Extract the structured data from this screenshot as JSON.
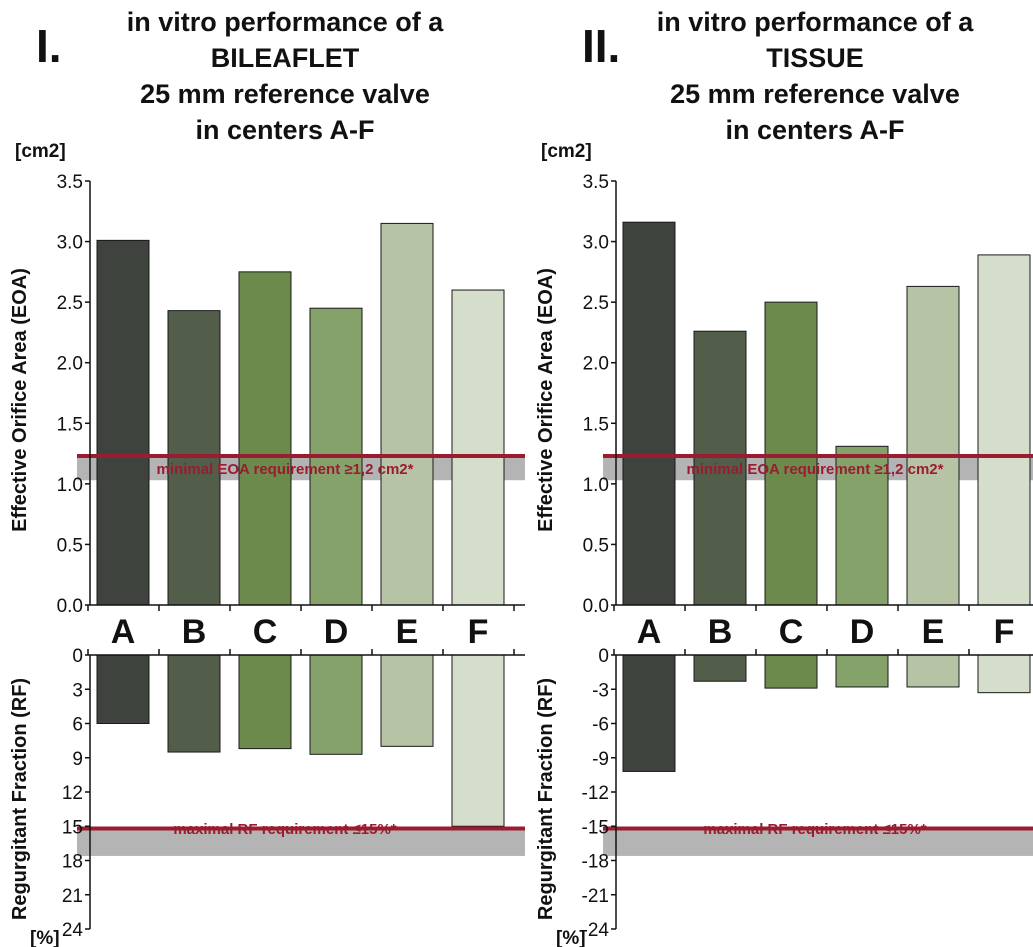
{
  "chart_data": [
    {
      "panel": "I.",
      "title_lines": [
        "in vitro performance of a",
        "BILEAFLET",
        "25 mm reference valve",
        "in centers A-F"
      ],
      "type": "bar",
      "categories": [
        "A",
        "B",
        "C",
        "D",
        "E",
        "F"
      ],
      "colors": [
        "#3f433d",
        "#525e4a",
        "#6b8a4c",
        "#84a26a",
        "#b6c4a5",
        "#d5ddcb"
      ],
      "eoa": {
        "ylabel": "Effective Orifice Area (EOA)",
        "unit": "[cm2]",
        "ylim": [
          0,
          3.5
        ],
        "ticks": [
          "0.0",
          "0.5",
          "1.0",
          "1.5",
          "2.0",
          "2.5",
          "3.0",
          "3.5"
        ],
        "values": [
          3.01,
          2.43,
          2.75,
          2.45,
          3.15,
          2.6
        ],
        "requirement_line": 1.23,
        "requirement_band": [
          1.03,
          1.23
        ],
        "requirement_label": "minimal EOA requirement ≥1,2 cm2*"
      },
      "rf": {
        "ylabel": "Regurgitant Fraction (RF)",
        "unit": "[%]",
        "ylim": [
          0,
          24
        ],
        "ticks": [
          "0",
          "3",
          "6",
          "9",
          "12",
          "15",
          "18",
          "21",
          "24"
        ],
        "values": [
          6.0,
          8.5,
          8.2,
          8.7,
          8.0,
          15.0
        ],
        "requirement_line": 15.2,
        "requirement_band": [
          15.2,
          17.6
        ],
        "requirement_label": "maximal RF requirement ≤15%*"
      }
    },
    {
      "panel": "II.",
      "title_lines": [
        "in vitro performance of a",
        "TISSUE",
        "25 mm reference valve",
        "in centers A-F"
      ],
      "type": "bar",
      "categories": [
        "A",
        "B",
        "C",
        "D",
        "E",
        "F"
      ],
      "colors": [
        "#3f433d",
        "#525e4a",
        "#6b8a4c",
        "#84a26a",
        "#b6c4a5",
        "#d5ddcb"
      ],
      "eoa": {
        "ylabel": "Effective Orifice Area (EOA)",
        "unit": "[cm2]",
        "ylim": [
          0,
          3.5
        ],
        "ticks": [
          "0.0",
          "0.5",
          "1.0",
          "1.5",
          "2.0",
          "2.5",
          "3.0",
          "3.5"
        ],
        "values": [
          3.16,
          2.26,
          2.5,
          1.31,
          2.63,
          2.89
        ],
        "requirement_line": 1.23,
        "requirement_band": [
          1.03,
          1.23
        ],
        "requirement_label": "minimal EOA requirement ≥1,2 cm2*"
      },
      "rf": {
        "ylabel": "Regurgitant Fraction (RF)",
        "unit": "[%]",
        "ylim": [
          0,
          -24
        ],
        "ticks": [
          "0",
          "-3",
          "-6",
          "-9",
          "-12",
          "-15",
          "-18",
          "-21",
          "-24"
        ],
        "values": [
          -10.2,
          -2.3,
          -2.9,
          -2.8,
          -2.8,
          -3.3
        ],
        "requirement_line": -15.2,
        "requirement_band": [
          -15.2,
          -17.6
        ],
        "requirement_label": "maximal RF requirement ≤15%*"
      }
    }
  ]
}
